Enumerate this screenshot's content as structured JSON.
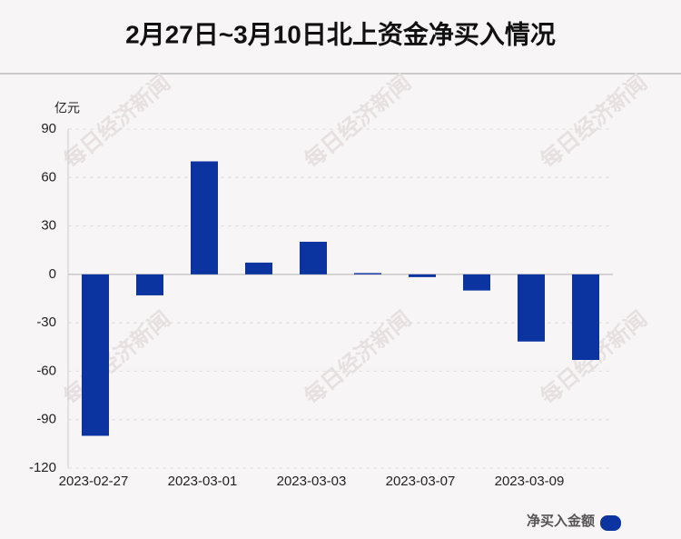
{
  "chart_data": {
    "type": "bar",
    "title": "2月27日~3月10日北上资金净买入情况",
    "y_label": "亿元",
    "watermark": "每日经济新闻",
    "categories": [
      "2023-02-27",
      null,
      "2023-03-01",
      null,
      "2023-03-03",
      null,
      "2023-03-07",
      null,
      "2023-03-09",
      null
    ],
    "series": [
      {
        "name": "净买入金额",
        "color": "#0c34a0",
        "values": [
          -100,
          -13,
          70,
          7.3,
          20.2,
          0.8,
          -1.7,
          -10,
          -41.6,
          -53
        ]
      }
    ],
    "ylim": [
      -120,
      90
    ],
    "yticks": [
      90,
      60,
      30,
      0,
      -30,
      -60,
      -90,
      -120
    ],
    "grid": true
  }
}
